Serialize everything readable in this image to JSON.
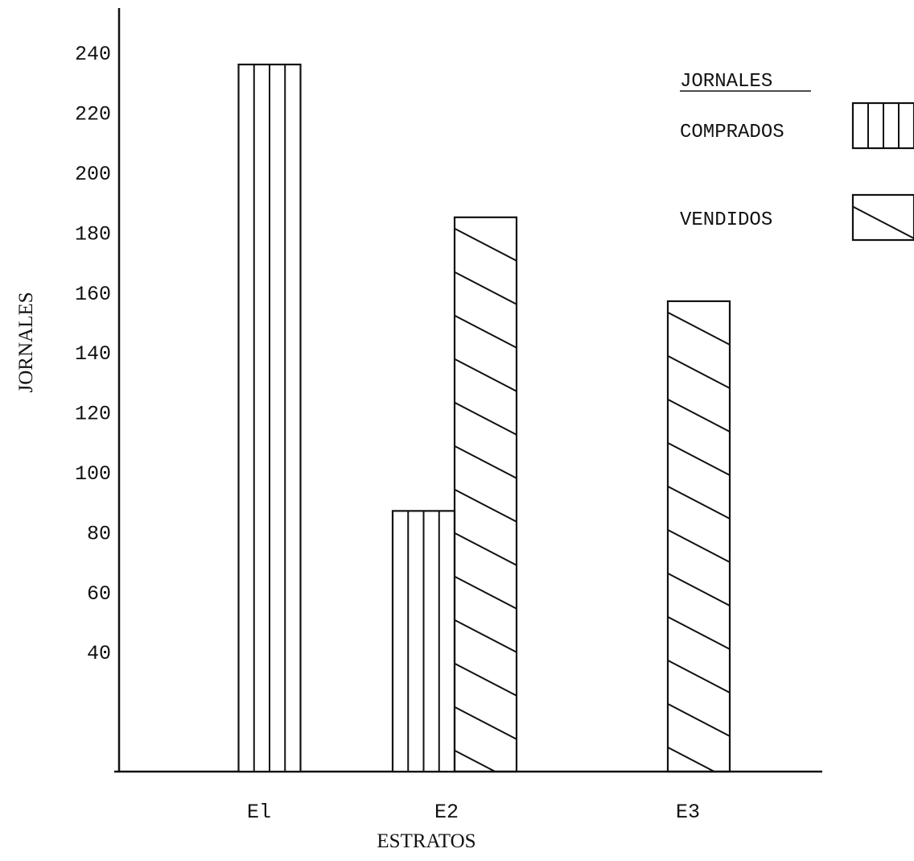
{
  "chart_data": {
    "type": "bar",
    "categories": [
      "El",
      "E2",
      "E3"
    ],
    "series": [
      {
        "name": "COMPRADOS",
        "values": [
          236,
          87,
          null
        ],
        "pattern": "vertical-lines"
      },
      {
        "name": "VENDIDOS",
        "values": [
          null,
          185,
          157
        ],
        "pattern": "diagonal-hatch"
      }
    ],
    "xlabel": "ESTRATOS",
    "ylabel": "JORNALES",
    "yticks": [
      40,
      60,
      80,
      100,
      120,
      140,
      160,
      180,
      200,
      220,
      240
    ],
    "ylim": [
      0,
      260
    ],
    "legend": {
      "title": "JORNALES",
      "placement": "top-right"
    },
    "grid": false,
    "colors": {
      "ink": "#111111",
      "background": "#ffffff"
    }
  }
}
